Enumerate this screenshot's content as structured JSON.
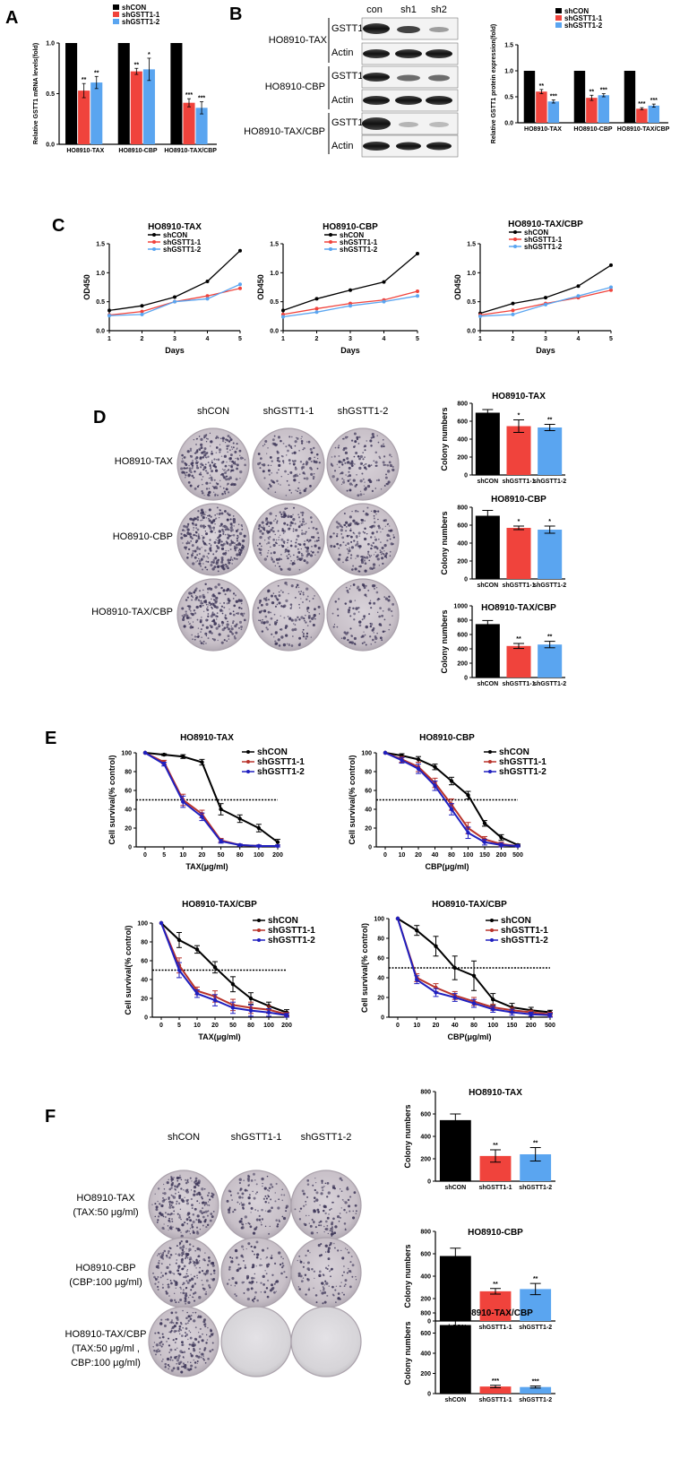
{
  "colors": {
    "shCON": "#000000",
    "sh1": "#f0433c",
    "sh2": "#5aa5f0",
    "sh1_E": "#b8332b",
    "sh2_E": "#1f1fbf"
  },
  "panels": {
    "A": "A",
    "B": "B",
    "C": "C",
    "D": "D",
    "E": "E",
    "F": "F"
  },
  "blot": {
    "lanes": [
      "con",
      "sh1",
      "sh2"
    ],
    "groups": [
      {
        "name": "HO8910-TAX",
        "bands": [
          "GSTT1",
          "Actin"
        ]
      },
      {
        "name": "HO8910-CBP",
        "bands": [
          "GSTT1",
          "Actin"
        ]
      },
      {
        "name": "HO8910-TAX/CBP",
        "bands": [
          "GSTT1",
          "Actin"
        ]
      }
    ]
  },
  "plates": {
    "D": {
      "cols": [
        "shCON",
        "shGSTT1-1",
        "shGSTT1-2"
      ],
      "rows": [
        "HO8910-TAX",
        "HO8910-CBP",
        "HO8910-TAX/CBP"
      ]
    },
    "F": {
      "cols": [
        "shCON",
        "shGSTT1-1",
        "shGSTT1-2"
      ],
      "rows": [
        [
          "HO8910-TAX",
          "(TAX:50 μg/ml)"
        ],
        [
          "HO8910-CBP",
          "(CBP:100 μg/ml)"
        ],
        [
          "HO8910-TAX/CBP",
          "(TAX:50 μg/ml ,",
          "CBP:100 μg/ml)"
        ]
      ]
    }
  },
  "chart_data": [
    {
      "id": "A",
      "type": "bar",
      "ylabel": "Relative GSTT1 mRNA levels(fold)",
      "ylim": [
        0,
        1.0
      ],
      "yticks": [
        "0.0",
        "0.5",
        "1.0"
      ],
      "categories": [
        "HO8910-TAX",
        "HO8910-CBP",
        "HO8910-TAX/CBP"
      ],
      "legend": [
        "shCON",
        "shGSTT1-1",
        "shGSTT1-2"
      ],
      "series": [
        {
          "name": "shCON",
          "values": [
            1.0,
            1.0,
            1.0
          ],
          "err": [
            0,
            0,
            0
          ],
          "sig": [
            "",
            "",
            ""
          ]
        },
        {
          "name": "shGSTT1-1",
          "values": [
            0.53,
            0.72,
            0.41
          ],
          "err": [
            0.07,
            0.03,
            0.04
          ],
          "sig": [
            "**",
            "**",
            "***"
          ]
        },
        {
          "name": "shGSTT1-2",
          "values": [
            0.61,
            0.74,
            0.36
          ],
          "err": [
            0.06,
            0.11,
            0.06
          ],
          "sig": [
            "**",
            "*",
            "***"
          ]
        }
      ]
    },
    {
      "id": "B",
      "type": "bar",
      "ylabel": "Relative GSTT1 protein expression(fold)",
      "ylim": [
        0,
        1.5
      ],
      "yticks": [
        "0.0",
        "0.5",
        "1.0",
        "1.5"
      ],
      "categories": [
        "HO8910-TAX",
        "HO8910-CBP",
        "HO8910-TAX/CBP"
      ],
      "legend": [
        "shCON",
        "shGSTT1-1",
        "shGSTT1-2"
      ],
      "series": [
        {
          "name": "shCON",
          "values": [
            1.0,
            1.0,
            1.0
          ],
          "err": [
            0,
            0,
            0
          ],
          "sig": [
            "",
            "",
            ""
          ]
        },
        {
          "name": "shGSTT1-1",
          "values": [
            0.6,
            0.48,
            0.27
          ],
          "err": [
            0.04,
            0.05,
            0.02
          ],
          "sig": [
            "**",
            "**",
            "***"
          ]
        },
        {
          "name": "shGSTT1-2",
          "values": [
            0.41,
            0.53,
            0.33
          ],
          "err": [
            0.03,
            0.03,
            0.03
          ],
          "sig": [
            "***",
            "***",
            "***"
          ]
        }
      ]
    },
    {
      "id": "C1",
      "type": "line",
      "title": "HO8910-TAX",
      "xlabel": "Days",
      "ylabel": "OD450",
      "x": [
        1,
        2,
        3,
        4,
        5
      ],
      "ylim": [
        0,
        1.5
      ],
      "yticks": [
        "0.0",
        "0.5",
        "1.0",
        "1.5"
      ],
      "legend": [
        "shCON",
        "shGSTT1-1",
        "shGSTT1-2"
      ],
      "series": [
        {
          "name": "shCON",
          "values": [
            0.35,
            0.43,
            0.58,
            0.85,
            1.38
          ]
        },
        {
          "name": "shGSTT1-1",
          "values": [
            0.27,
            0.33,
            0.5,
            0.6,
            0.73
          ]
        },
        {
          "name": "shGSTT1-2",
          "values": [
            0.26,
            0.28,
            0.5,
            0.55,
            0.8
          ]
        }
      ]
    },
    {
      "id": "C2",
      "type": "line",
      "title": "HO8910-CBP",
      "xlabel": "Days",
      "ylabel": "OD450",
      "x": [
        1,
        2,
        3,
        4,
        5
      ],
      "ylim": [
        0,
        1.5
      ],
      "yticks": [
        "0.0",
        "0.5",
        "1.0",
        "1.5"
      ],
      "legend": [
        "shCON",
        "shGSTT1-1",
        "shGSTT1-2"
      ],
      "series": [
        {
          "name": "shCON",
          "values": [
            0.35,
            0.55,
            0.7,
            0.84,
            1.33
          ]
        },
        {
          "name": "shGSTT1-1",
          "values": [
            0.28,
            0.38,
            0.47,
            0.53,
            0.68
          ]
        },
        {
          "name": "shGSTT1-2",
          "values": [
            0.24,
            0.32,
            0.43,
            0.5,
            0.6
          ]
        }
      ]
    },
    {
      "id": "C3",
      "type": "line",
      "title": "HO8910-TAX/CBP",
      "xlabel": "Days",
      "ylabel": "OD450",
      "x": [
        1,
        2,
        3,
        4,
        5
      ],
      "ylim": [
        0,
        1.5
      ],
      "yticks": [
        "0.0",
        "0.5",
        "1.0",
        "1.5"
      ],
      "legend": [
        "shCON",
        "shGSTT1-1",
        "shGSTT1-2"
      ],
      "series": [
        {
          "name": "shCON",
          "values": [
            0.3,
            0.47,
            0.57,
            0.77,
            1.13
          ]
        },
        {
          "name": "shGSTT1-1",
          "values": [
            0.27,
            0.35,
            0.47,
            0.57,
            0.7
          ]
        },
        {
          "name": "shGSTT1-2",
          "values": [
            0.25,
            0.28,
            0.45,
            0.6,
            0.75
          ]
        }
      ]
    },
    {
      "id": "D1",
      "type": "bar",
      "title": "HO8910-TAX",
      "ylabel": "Colony numbers",
      "ylim": [
        0,
        800
      ],
      "yticks": [
        "0",
        "200",
        "400",
        "600",
        "800"
      ],
      "categories": [
        "shCON",
        "shGSTT1-1",
        "shGSTT1-2"
      ],
      "values": [
        695,
        545,
        530
      ],
      "err": [
        35,
        70,
        35
      ],
      "sig": [
        "",
        "*",
        "**"
      ]
    },
    {
      "id": "D2",
      "type": "bar",
      "title": "HO8910-CBP",
      "ylabel": "Colony numbers",
      "ylim": [
        0,
        800
      ],
      "yticks": [
        "0",
        "200",
        "400",
        "600",
        "800"
      ],
      "categories": [
        "shCON",
        "shGSTT1-1",
        "shGSTT1-2"
      ],
      "values": [
        705,
        570,
        550
      ],
      "err": [
        60,
        20,
        40
      ],
      "sig": [
        "",
        "*",
        "*"
      ]
    },
    {
      "id": "D3",
      "type": "bar",
      "title": "HO8910-TAX/CBP",
      "ylabel": "Colony numbers",
      "ylim": [
        0,
        1000
      ],
      "yticks": [
        "0",
        "200",
        "400",
        "600",
        "800",
        "1000"
      ],
      "categories": [
        "shCON",
        "shGSTT1-1",
        "shGSTT1-2"
      ],
      "values": [
        745,
        440,
        460
      ],
      "err": [
        50,
        35,
        45
      ],
      "sig": [
        "",
        "**",
        "**"
      ]
    },
    {
      "id": "E1",
      "type": "line",
      "title": "HO8910-TAX",
      "xlabel": "TAX(μg/ml)",
      "ylabel": "Cell survival(% control)",
      "x": [
        "0",
        "5",
        "10",
        "20",
        "50",
        "80",
        "100",
        "200"
      ],
      "ylim": [
        0,
        100
      ],
      "yticks": [
        "0",
        "20",
        "40",
        "60",
        "80",
        "100"
      ],
      "ic50_line": 50,
      "legend": [
        "shCON",
        "shGSTT1-1",
        "shGSTT1-2"
      ],
      "series": [
        {
          "name": "shCON",
          "values": [
            100,
            98,
            96,
            90,
            40,
            30,
            20,
            5
          ],
          "err": [
            0,
            1,
            2,
            3,
            6,
            4,
            4,
            3
          ]
        },
        {
          "name": "shGSTT1-1",
          "values": [
            100,
            90,
            50,
            35,
            7,
            2,
            1,
            1
          ],
          "err": [
            0,
            2,
            6,
            4,
            2,
            1,
            1,
            1
          ]
        },
        {
          "name": "shGSTT1-2",
          "values": [
            100,
            88,
            48,
            32,
            6,
            2,
            1,
            1
          ],
          "err": [
            0,
            2,
            6,
            4,
            2,
            1,
            1,
            1
          ]
        }
      ]
    },
    {
      "id": "E2",
      "type": "line",
      "title": "HO8910-CBP",
      "xlabel": "CBP(μg/ml)",
      "ylabel": "Cell survival(% control)",
      "x": [
        "0",
        "10",
        "20",
        "40",
        "80",
        "100",
        "150",
        "200",
        "500"
      ],
      "ylim": [
        0,
        100
      ],
      "yticks": [
        "0",
        "20",
        "40",
        "60",
        "80",
        "100"
      ],
      "ic50_line": 50,
      "legend": [
        "shCON",
        "shGSTT1-1",
        "shGSTT1-2"
      ],
      "series": [
        {
          "name": "shCON",
          "values": [
            100,
            97,
            93,
            85,
            70,
            55,
            25,
            10,
            2
          ],
          "err": [
            0,
            2,
            3,
            3,
            4,
            4,
            3,
            3,
            1
          ]
        },
        {
          "name": "shGSTT1-1",
          "values": [
            100,
            93,
            85,
            68,
            45,
            20,
            8,
            3,
            1
          ],
          "err": [
            0,
            3,
            5,
            5,
            6,
            6,
            3,
            2,
            1
          ]
        },
        {
          "name": "shGSTT1-2",
          "values": [
            100,
            92,
            83,
            65,
            40,
            15,
            5,
            2,
            1
          ],
          "err": [
            0,
            3,
            5,
            5,
            6,
            6,
            3,
            2,
            1
          ]
        }
      ]
    },
    {
      "id": "E3",
      "type": "line",
      "title": "HO8910-TAX/CBP",
      "xlabel": "TAX(μg/ml)",
      "ylabel": "Cell survival(% control)",
      "x": [
        "0",
        "5",
        "10",
        "20",
        "50",
        "80",
        "100",
        "200"
      ],
      "ylim": [
        0,
        100
      ],
      "yticks": [
        "0",
        "20",
        "40",
        "60",
        "80",
        "100"
      ],
      "ic50_line": 50,
      "legend": [
        "shCON",
        "shGSTT1-1",
        "shGSTT1-2"
      ],
      "series": [
        {
          "name": "shCON",
          "values": [
            100,
            82,
            72,
            53,
            35,
            20,
            12,
            5
          ],
          "err": [
            0,
            8,
            4,
            6,
            8,
            6,
            4,
            3
          ]
        },
        {
          "name": "shGSTT1-1",
          "values": [
            100,
            55,
            28,
            22,
            13,
            10,
            8,
            3
          ],
          "err": [
            0,
            8,
            4,
            6,
            6,
            6,
            4,
            2
          ]
        },
        {
          "name": "shGSTT1-2",
          "values": [
            100,
            50,
            25,
            18,
            10,
            7,
            5,
            2
          ],
          "err": [
            0,
            8,
            4,
            6,
            6,
            6,
            4,
            2
          ]
        }
      ]
    },
    {
      "id": "E4",
      "type": "line",
      "title": "HO8910-TAX/CBP",
      "xlabel": "CBP(μg/ml)",
      "ylabel": "Cell survival(% control)",
      "x": [
        "0",
        "10",
        "20",
        "40",
        "80",
        "100",
        "150",
        "200",
        "500"
      ],
      "ylim": [
        0,
        100
      ],
      "yticks": [
        "0",
        "20",
        "40",
        "60",
        "80",
        "100"
      ],
      "ic50_line": 50,
      "legend": [
        "shCON",
        "shGSTT1-1",
        "shGSTT1-2"
      ],
      "series": [
        {
          "name": "shCON",
          "values": [
            100,
            88,
            72,
            50,
            42,
            18,
            10,
            7,
            5
          ],
          "err": [
            0,
            5,
            10,
            12,
            15,
            6,
            4,
            3,
            2
          ]
        },
        {
          "name": "shGSTT1-1",
          "values": [
            100,
            40,
            30,
            22,
            16,
            10,
            7,
            5,
            3
          ],
          "err": [
            0,
            4,
            4,
            4,
            4,
            3,
            3,
            2,
            2
          ]
        },
        {
          "name": "shGSTT1-2",
          "values": [
            100,
            38,
            25,
            20,
            14,
            8,
            5,
            3,
            2
          ],
          "err": [
            0,
            4,
            4,
            4,
            4,
            3,
            3,
            2,
            2
          ]
        }
      ]
    },
    {
      "id": "F1",
      "type": "bar",
      "title": "HO8910-TAX",
      "ylabel": "Colony numbers",
      "ylim": [
        0,
        800
      ],
      "yticks": [
        "0",
        "200",
        "400",
        "600",
        "800"
      ],
      "categories": [
        "shCON",
        "shGSTT1-1",
        "shGSTT1-2"
      ],
      "values": [
        545,
        225,
        240
      ],
      "err": [
        55,
        55,
        60
      ],
      "sig": [
        "",
        "**",
        "**"
      ]
    },
    {
      "id": "F2",
      "type": "bar",
      "title": "HO8910-CBP",
      "ylabel": "Colony numbers",
      "ylim": [
        0,
        800
      ],
      "yticks": [
        "0",
        "200",
        "400",
        "600",
        "800"
      ],
      "categories": [
        "shCON",
        "shGSTT1-1",
        "shGSTT1-2"
      ],
      "values": [
        580,
        265,
        285
      ],
      "err": [
        70,
        25,
        50
      ],
      "sig": [
        "",
        "**",
        "**"
      ]
    },
    {
      "id": "F3",
      "type": "bar",
      "title": "HO8910-TAX/CBP",
      "ylabel": "Colony numbers",
      "ylim": [
        0,
        800
      ],
      "yticks": [
        "0",
        "200",
        "400",
        "600",
        "800"
      ],
      "categories": [
        "shCON",
        "shGSTT1-1",
        "shGSTT1-2"
      ],
      "values": [
        680,
        70,
        65
      ],
      "err": [
        40,
        12,
        10
      ],
      "sig": [
        "",
        "***",
        "***"
      ]
    }
  ]
}
